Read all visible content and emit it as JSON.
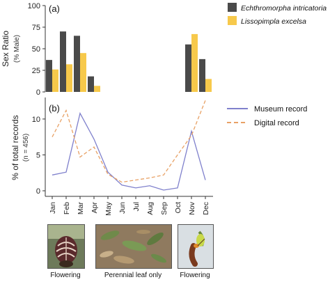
{
  "chart_data": [
    {
      "type": "bar",
      "panel_label": "(a)",
      "ylabel": "Sex Ratio",
      "ylabel_sub": "(% Male)",
      "ylim": [
        0,
        100
      ],
      "yticks": [
        0,
        25,
        50,
        75,
        100
      ],
      "categories": [
        "Jan",
        "Feb",
        "Mar",
        "Apr",
        "May",
        "Jun",
        "Jul",
        "Aug",
        "Sep",
        "Oct",
        "Nov",
        "Dec"
      ],
      "series": [
        {
          "name": "Echthromorpha intricatoria",
          "color": "#4a4a4a",
          "values": [
            37,
            70,
            65,
            18,
            null,
            null,
            null,
            null,
            null,
            null,
            55,
            38
          ]
        },
        {
          "name": "Lissopimpla excelsa",
          "color": "#f7c94b",
          "values": [
            26,
            32,
            45,
            7,
            null,
            null,
            null,
            null,
            null,
            null,
            67,
            15
          ]
        }
      ],
      "legend_placement": "top-right"
    },
    {
      "type": "line",
      "panel_label": "(b)",
      "ylabel": "% of total records",
      "ylabel_sub": "(n = 456)",
      "ylim": [
        0,
        13
      ],
      "yticks": [
        0,
        5,
        10
      ],
      "categories": [
        "Jan",
        "Feb",
        "Mar",
        "Apr",
        "May",
        "Jun",
        "Jul",
        "Aug",
        "Sep",
        "Oct",
        "Nov",
        "Dec"
      ],
      "series": [
        {
          "name": "Museum record",
          "color": "#7f80cc",
          "dash": "solid",
          "values": [
            2.2,
            2.6,
            10.8,
            7.2,
            2.6,
            0.8,
            0.4,
            0.7,
            0.1,
            0.4,
            8.3,
            1.5
          ]
        },
        {
          "name": "Digital record",
          "color": "#e8a165",
          "dash": "dashed",
          "values": [
            7.5,
            11.2,
            4.7,
            6.1,
            2.3,
            1.2,
            1.5,
            1.8,
            2.2,
            5.0,
            7.7,
            12.6
          ]
        }
      ],
      "legend_placement": "right"
    }
  ],
  "phenology": {
    "flowering_1": "Flowering",
    "leaf_only": "Perennial leaf only",
    "flowering_2": "Flowering"
  }
}
